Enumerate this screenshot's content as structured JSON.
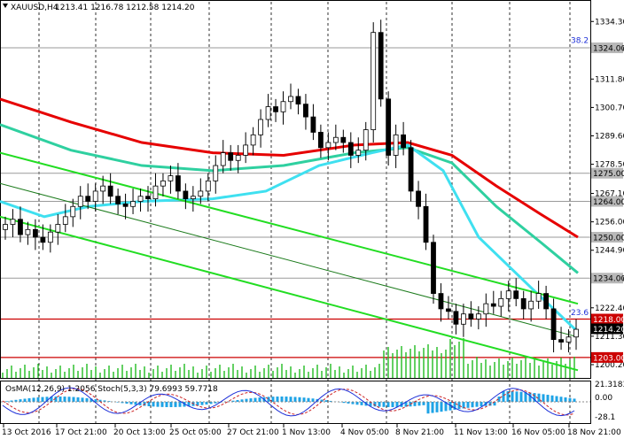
{
  "header": {
    "symbol": "XAUUSD,H4",
    "ohlc": "1213.41 1216.78 1212.58 1214.20"
  },
  "indicator_header": "OsMA(12,26,9) 1.2056 Stoch(5,3,3) 79.6993 59.7718",
  "colors": {
    "ema_red": "#e60000",
    "ema_teal": "#2fd0a0",
    "ema_cyan": "#3fe0f0",
    "channel_green": "#22dd22",
    "channel_mid": "#1a7a1a",
    "candle": "#000000",
    "volume": "#22bb22",
    "level_red": "#cc0000",
    "fib_blue": "#1d2fd8",
    "osma": "#1ea3e6",
    "stoch_main": "#1d2fd8",
    "stoch_signal": "#cc2222"
  },
  "chart_data": {
    "type": "candlestick",
    "y_range": [
      1195.0,
      1342.0
    ],
    "y_ticks": [
      "1334.30",
      "1323.60",
      "1311.80",
      "1300.70",
      "1289.60",
      "1278.50",
      "1267.10",
      "1256.00",
      "1244.90",
      "1233.80",
      "1222.40",
      "1211.30",
      "1200.20"
    ],
    "x_labels": [
      "13 Oct 2016",
      "17 Oct 21:00",
      "20 Oct 13:00",
      "25 Oct 05:00",
      "27 Oct 21:00",
      "1 Nov 13:00",
      "4 Nov 05:00",
      "8 Nov 21:00",
      "11 Nov 13:00",
      "16 Nov 05:00",
      "18 Nov 21:00"
    ],
    "price_levels": [
      {
        "value": 1324.0,
        "label": "1324.00",
        "style": "grey"
      },
      {
        "value": 1275.0,
        "label": "1275.00",
        "style": "grey"
      },
      {
        "value": 1264.0,
        "label": "1264.00",
        "style": "grey"
      },
      {
        "value": 1250.0,
        "label": "1250.00",
        "style": "grey"
      },
      {
        "value": 1234.0,
        "label": "1234.00",
        "style": "grey"
      },
      {
        "value": 1218.0,
        "label": "1218.00",
        "style": "red"
      },
      {
        "value": 1214.2,
        "label": "1214.20",
        "style": "current"
      },
      {
        "value": 1203.0,
        "label": "1203.00",
        "style": "red"
      }
    ],
    "fib_labels": [
      {
        "value": 1326.0,
        "label": "38.2"
      },
      {
        "value": 1219.5,
        "label": "23.6"
      }
    ],
    "stoch_levels": [
      "21.3183",
      "0.00",
      "-28.1"
    ],
    "closes": [
      1255,
      1257,
      1251,
      1253,
      1250,
      1248,
      1252,
      1255,
      1258,
      1262,
      1266,
      1264,
      1268,
      1270,
      1266,
      1263,
      1262,
      1264,
      1266,
      1265,
      1270,
      1272,
      1274,
      1268,
      1265,
      1266,
      1268,
      1272,
      1278,
      1283,
      1280,
      1282,
      1286,
      1290,
      1296,
      1301,
      1299,
      1303,
      1305,
      1302,
      1297,
      1291,
      1285,
      1287,
      1289,
      1287,
      1282,
      1284,
      1292,
      1330,
      1304,
      1282,
      1290,
      1285,
      1268,
      1262,
      1248,
      1228,
      1222,
      1221,
      1216,
      1220,
      1218,
      1220,
      1224,
      1223,
      1226,
      1229,
      1226,
      1222,
      1225,
      1228,
      1222,
      1210,
      1209,
      1211,
      1214
    ]
  }
}
